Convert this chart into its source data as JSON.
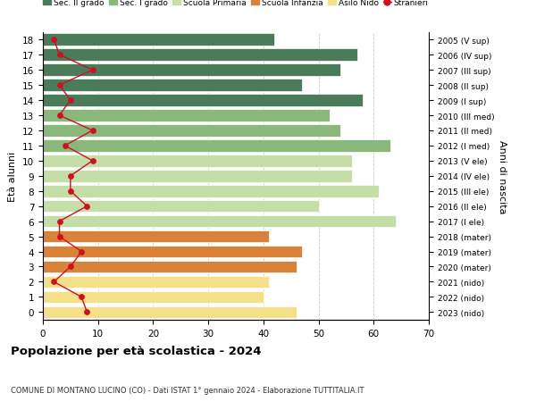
{
  "ages": [
    18,
    17,
    16,
    15,
    14,
    13,
    12,
    11,
    10,
    9,
    8,
    7,
    6,
    5,
    4,
    3,
    2,
    1,
    0
  ],
  "right_labels": [
    "2005 (V sup)",
    "2006 (IV sup)",
    "2007 (III sup)",
    "2008 (II sup)",
    "2009 (I sup)",
    "2010 (III med)",
    "2011 (II med)",
    "2012 (I med)",
    "2013 (V ele)",
    "2014 (IV ele)",
    "2015 (III ele)",
    "2016 (II ele)",
    "2017 (I ele)",
    "2018 (mater)",
    "2019 (mater)",
    "2020 (mater)",
    "2021 (nido)",
    "2022 (nido)",
    "2023 (nido)"
  ],
  "bar_values": [
    42,
    57,
    54,
    47,
    58,
    52,
    54,
    63,
    56,
    56,
    61,
    50,
    64,
    41,
    47,
    46,
    41,
    40,
    46
  ],
  "bar_colors": [
    "#4a7c59",
    "#4a7c59",
    "#4a7c59",
    "#4a7c59",
    "#4a7c59",
    "#8ab87a",
    "#8ab87a",
    "#8ab87a",
    "#c5dea8",
    "#c5dea8",
    "#c5dea8",
    "#c5dea8",
    "#c5dea8",
    "#d9823a",
    "#d9823a",
    "#d9823a",
    "#f5e08a",
    "#f5e08a",
    "#f5e08a"
  ],
  "stranieri_values": [
    2,
    3,
    9,
    3,
    5,
    3,
    9,
    4,
    9,
    5,
    5,
    8,
    3,
    3,
    7,
    5,
    2,
    7,
    8
  ],
  "title": "Popolazione per età scolastica - 2024",
  "subtitle": "COMUNE DI MONTANO LUCINO (CO) - Dati ISTAT 1° gennaio 2024 - Elaborazione TUTTITALIA.IT",
  "ylabel": "Età alunni",
  "right_ylabel": "Anni di nascita",
  "xlim": [
    0,
    70
  ],
  "xticks": [
    0,
    10,
    20,
    30,
    40,
    50,
    60,
    70
  ],
  "legend_labels": [
    "Sec. II grado",
    "Sec. I grado",
    "Scuola Primaria",
    "Scuola Infanzia",
    "Asilo Nido",
    "Stranieri"
  ],
  "legend_colors": [
    "#4a7c59",
    "#8ab87a",
    "#c5dea8",
    "#d9823a",
    "#f5e08a",
    "#cc1122"
  ],
  "stranieri_color": "#cc1122",
  "bg_color": "#ffffff",
  "bar_height": 0.8
}
